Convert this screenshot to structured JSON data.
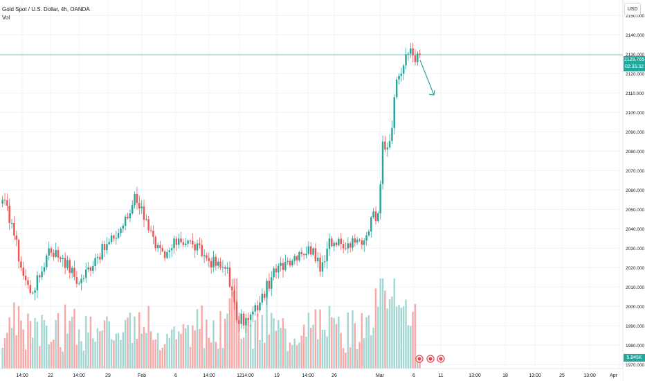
{
  "header": {
    "title": "Gold Spot / U.S. Dollar, 4h, OANDA",
    "indicator": "Vol",
    "currency": "USD"
  },
  "last_price": {
    "value": "2129.765",
    "countdown": "02:35:32"
  },
  "volume_value": "5.845K",
  "colors": {
    "up": "#26a69a",
    "down": "#ef5350",
    "up_vol": "#a5d6d2",
    "down_vol": "#f7a9a7",
    "grid": "#f0f3fa",
    "arrow": "#2a9d9a"
  },
  "events": {
    "icon": "event-flag-icon",
    "count": 3
  },
  "chart_data": {
    "type": "candlestick",
    "title": "",
    "timeframe": "4h",
    "ylim": [
      1968,
      2158
    ],
    "y_ticks": [
      "2150.000",
      "2140.000",
      "2130.000",
      "2120.000",
      "2110.000",
      "2100.000",
      "2090.000",
      "2080.000",
      "2070.000",
      "2060.000",
      "2050.000",
      "2040.000",
      "2030.000",
      "2020.000",
      "2010.000",
      "2000.000",
      "1990.000",
      "1980.000",
      "1970.000"
    ],
    "x_labels": [
      "14:00",
      "22",
      "14:00",
      "29",
      "Feb",
      "6",
      "14:00",
      "12",
      "14:00",
      "19",
      "14:00",
      "26",
      "Mar",
      "6",
      "11",
      "13:00",
      "18",
      "13:00",
      "25",
      "13:00",
      "Apr"
    ],
    "anchors": [
      {
        "i": 0,
        "c": 2055
      },
      {
        "i": 4,
        "c": 2043
      },
      {
        "i": 8,
        "c": 2020
      },
      {
        "i": 12,
        "c": 2007
      },
      {
        "i": 16,
        "c": 2015
      },
      {
        "i": 20,
        "c": 2030
      },
      {
        "i": 26,
        "c": 2025
      },
      {
        "i": 33,
        "c": 2012
      },
      {
        "i": 40,
        "c": 2025
      },
      {
        "i": 48,
        "c": 2035
      },
      {
        "i": 55,
        "c": 2048
      },
      {
        "i": 57,
        "c": 2058
      },
      {
        "i": 62,
        "c": 2045
      },
      {
        "i": 66,
        "c": 2030
      },
      {
        "i": 70,
        "c": 2025
      },
      {
        "i": 76,
        "c": 2035
      },
      {
        "i": 82,
        "c": 2032
      },
      {
        "i": 88,
        "c": 2025
      },
      {
        "i": 94,
        "c": 2020
      },
      {
        "i": 97,
        "c": 2020
      },
      {
        "i": 101,
        "c": 1993
      },
      {
        "i": 106,
        "c": 1993
      },
      {
        "i": 111,
        "c": 2002
      },
      {
        "i": 116,
        "c": 2015
      },
      {
        "i": 122,
        "c": 2023
      },
      {
        "i": 128,
        "c": 2028
      },
      {
        "i": 134,
        "c": 2030
      },
      {
        "i": 137,
        "c": 2018
      },
      {
        "i": 141,
        "c": 2035
      },
      {
        "i": 147,
        "c": 2030
      },
      {
        "i": 152,
        "c": 2033
      },
      {
        "i": 156,
        "c": 2034
      },
      {
        "i": 159,
        "c": 2046
      },
      {
        "i": 162,
        "c": 2048
      },
      {
        "i": 164,
        "c": 2085
      },
      {
        "i": 166,
        "c": 2082
      },
      {
        "i": 168,
        "c": 2092
      },
      {
        "i": 170,
        "c": 2117
      },
      {
        "i": 172,
        "c": 2120
      },
      {
        "i": 174,
        "c": 2130
      },
      {
        "i": 176,
        "c": 2133
      },
      {
        "i": 178,
        "c": 2126
      },
      {
        "i": 180,
        "c": 2129.765
      }
    ]
  }
}
